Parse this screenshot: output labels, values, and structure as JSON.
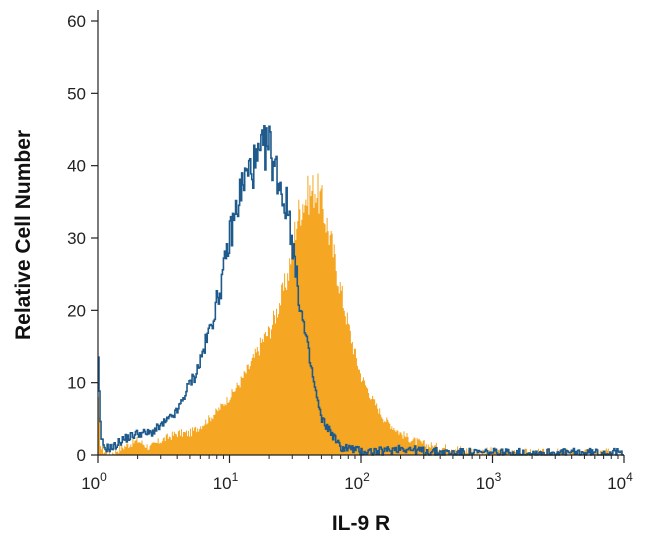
{
  "chart_data": {
    "type": "area",
    "title": "",
    "xlabel": "IL-9 R",
    "ylabel": "Relative Cell Number",
    "x_scale": "log",
    "xlim": [
      1,
      10000
    ],
    "ylim": [
      0,
      60
    ],
    "grid": false,
    "legend": "none",
    "y_ticks": [
      "0",
      "10",
      "20",
      "30",
      "40",
      "50",
      "60"
    ],
    "x_ticks": [
      {
        "base": "10",
        "exp": "0"
      },
      {
        "base": "10",
        "exp": "1"
      },
      {
        "base": "10",
        "exp": "2"
      },
      {
        "base": "10",
        "exp": "3"
      },
      {
        "base": "10",
        "exp": "4"
      }
    ],
    "series": [
      {
        "style": "filled",
        "color": "#F5A623",
        "x": [
          1.0,
          1.05,
          1.2,
          1.5,
          2.0,
          2.5,
          3.0,
          4.0,
          5.0,
          6.0,
          7.0,
          8.0,
          10.0,
          12.0,
          14.0,
          16.0,
          18.0,
          20.0,
          22.0,
          25.0,
          28.0,
          30.0,
          33.0,
          36.0,
          40.0,
          45.0,
          50.0,
          55.0,
          60.0,
          70.0,
          80.0,
          90.0,
          100.0,
          120.0,
          150.0,
          200.0,
          250.0,
          300.0,
          400.0,
          500.0,
          700.0,
          1000.0,
          2000.0,
          3000.0,
          5000.0,
          7000.0,
          10000.0
        ],
        "values": [
          9,
          1,
          0,
          1,
          2,
          1,
          2,
          3,
          3,
          4,
          5,
          6,
          8,
          10,
          12,
          14,
          16,
          17,
          19,
          22,
          25,
          29,
          33,
          35,
          36,
          37,
          35,
          32,
          29,
          23,
          18,
          14,
          11,
          8,
          5,
          3,
          2,
          1.5,
          1,
          1,
          0.5,
          0.5,
          0.3,
          0.3,
          0.3,
          0.3,
          0.5
        ]
      },
      {
        "style": "outline",
        "color": "#1F5A8C",
        "x": [
          1.0,
          1.05,
          1.1,
          1.3,
          1.5,
          2.0,
          2.5,
          3.0,
          3.5,
          4.0,
          4.5,
          5.0,
          5.5,
          6.0,
          7.0,
          8.0,
          9.0,
          10.0,
          11.0,
          12.0,
          13.0,
          14.0,
          15.0,
          16.0,
          17.0,
          18.0,
          20.0,
          22.0,
          24.0,
          26.0,
          28.0,
          30.0,
          32.0,
          35.0,
          40.0,
          45.0,
          50.0,
          60.0,
          70.0,
          80.0,
          100.0,
          150.0,
          200.0,
          300.0,
          500.0,
          1000.0
        ],
        "values": [
          15,
          3,
          1,
          1,
          2,
          3,
          3,
          4,
          5,
          6,
          8,
          10,
          11,
          13,
          17,
          21,
          25,
          30,
          33,
          36,
          38,
          39,
          40,
          40,
          41,
          42,
          43,
          40,
          38,
          35,
          34,
          30,
          25,
          20,
          14,
          9,
          5,
          3,
          1,
          1,
          0.5,
          0.5,
          1,
          0.5,
          0.3,
          0.3
        ]
      }
    ]
  }
}
